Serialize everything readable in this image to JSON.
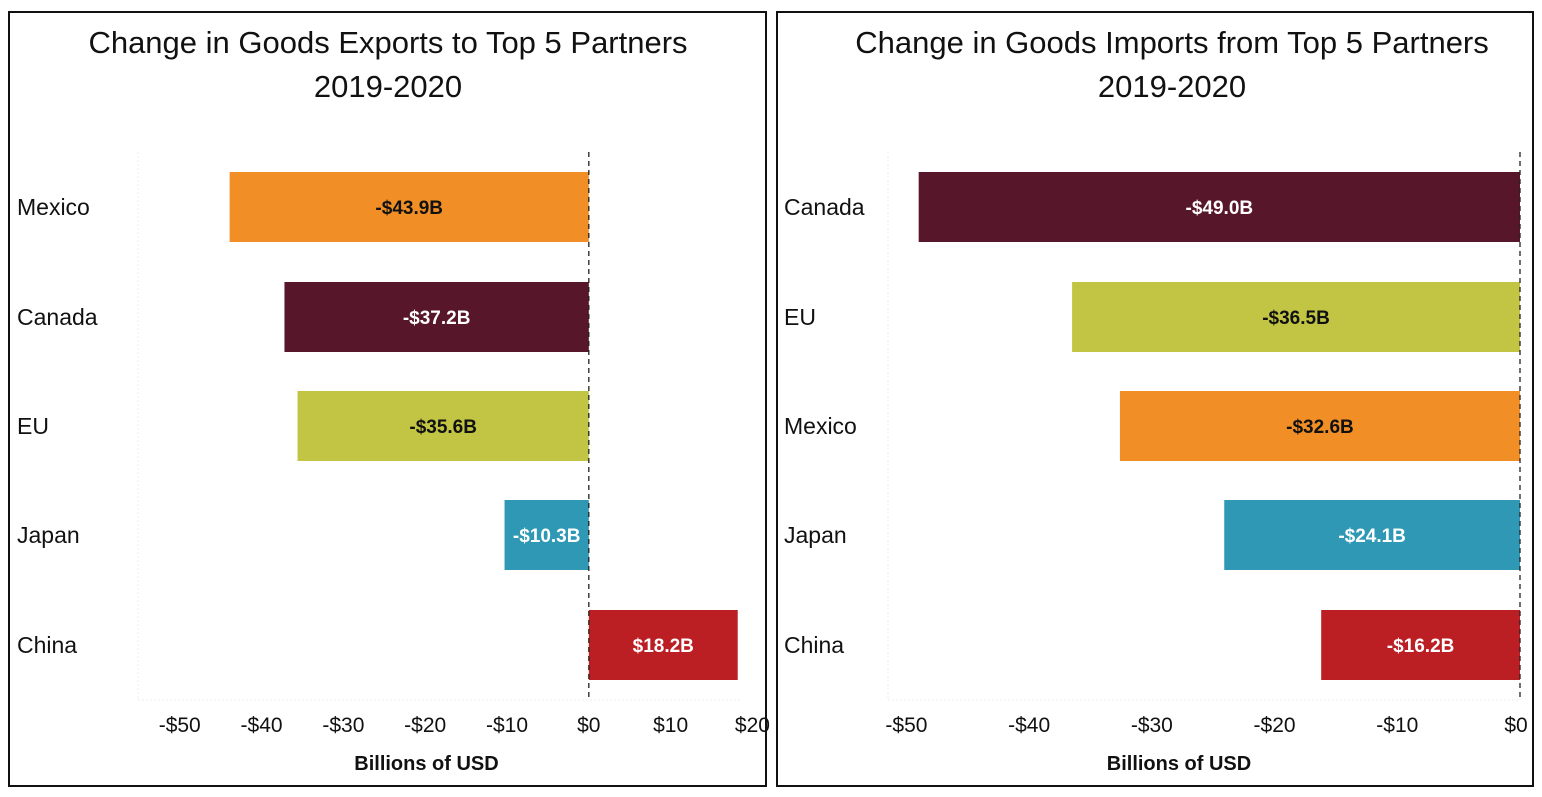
{
  "chart_data": [
    {
      "type": "bar",
      "orientation": "horizontal",
      "title": "Change in Goods Exports to Top 5 Partners",
      "subtitle": "2019-2020",
      "xlabel": "Billions of USD",
      "ylabel": "",
      "categories": [
        "Mexico",
        "Canada",
        "EU",
        "Japan",
        "China"
      ],
      "values": [
        -43.9,
        -37.2,
        -35.6,
        -10.3,
        18.2
      ],
      "value_labels": [
        "-$43.9B",
        "-$37.2B",
        "-$35.6B",
        "-$10.3B",
        "$18.2B"
      ],
      "colors": [
        "#f18e26",
        "#58162b",
        "#c2c544",
        "#2e98b5",
        "#bb1f24"
      ],
      "label_colors": [
        "#111111",
        "#ffffff",
        "#111111",
        "#ffffff",
        "#ffffff"
      ],
      "xticks": [
        -50,
        -40,
        -30,
        -20,
        -10,
        0,
        10,
        20
      ],
      "xtick_labels": [
        "-$50",
        "-$40",
        "-$30",
        "-$20",
        "-$10",
        "$0",
        "$10",
        "$20"
      ],
      "xlim": [
        -55.1,
        18.6
      ],
      "grid": false,
      "zero_line": "dashed"
    },
    {
      "type": "bar",
      "orientation": "horizontal",
      "title": "Change in Goods Imports from Top 5 Partners",
      "subtitle": "2019-2020",
      "xlabel": "Billions of USD",
      "ylabel": "",
      "categories": [
        "Canada",
        "EU",
        "Mexico",
        "Japan",
        "China"
      ],
      "values": [
        -49.0,
        -36.5,
        -32.6,
        -24.1,
        -16.2
      ],
      "value_labels": [
        "-$49.0B",
        "-$36.5B",
        "-$32.6B",
        "-$24.1B",
        "-$16.2B"
      ],
      "colors": [
        "#58162b",
        "#c2c544",
        "#f18e26",
        "#2e98b5",
        "#bb1f24"
      ],
      "label_colors": [
        "#ffffff",
        "#111111",
        "#111111",
        "#ffffff",
        "#ffffff"
      ],
      "xticks": [
        -50,
        -40,
        -30,
        -20,
        -10,
        0
      ],
      "xtick_labels": [
        "-$50",
        "-$40",
        "-$30",
        "-$20",
        "-$10",
        "$0"
      ],
      "xlim": [
        -51.5,
        0
      ],
      "grid": false,
      "zero_line": "dashed"
    }
  ]
}
